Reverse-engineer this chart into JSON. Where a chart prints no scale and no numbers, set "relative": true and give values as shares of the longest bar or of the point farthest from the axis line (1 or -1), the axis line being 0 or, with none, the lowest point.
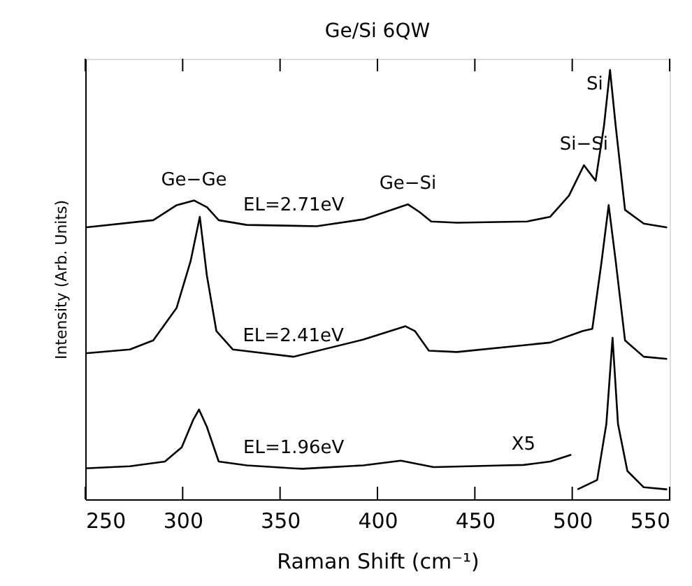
{
  "chart_data": {
    "type": "line",
    "title": "Ge/Si 6QW",
    "xlabel": "Raman Shift (cm⁻¹)",
    "ylabel": "Intensity (Arb. Units)",
    "relative": true,
    "xlim": [
      250,
      550
    ],
    "xticks": [
      250,
      300,
      350,
      400,
      450,
      500,
      550
    ],
    "grid": false,
    "marker": "none",
    "line_style": "solid",
    "series": [
      {
        "color": "#000000",
        "x": [
          250,
          284.9,
          296.9,
          305.8,
          312.5,
          318.5,
          332.9,
          357,
          368.8,
          392.8,
          415.6,
          421.6,
          427.6,
          440.8,
          476.8,
          488.7,
          498.3,
          506,
          512,
          516.3,
          519.4,
          522.3,
          527.1,
          536.7,
          548.7
        ],
        "values": [
          0.633,
          0.65,
          0.685,
          0.696,
          0.68,
          0.65,
          0.639,
          0.637,
          0.636,
          0.652,
          0.687,
          0.669,
          0.647,
          0.644,
          0.647,
          0.658,
          0.707,
          0.778,
          0.742,
          0.87,
          1.0,
          0.87,
          0.674,
          0.642,
          0.633
        ]
      },
      {
        "color": "#000000",
        "x": [
          250,
          272.9,
          284.9,
          296.9,
          304.1,
          308.8,
          312.4,
          317.3,
          325.7,
          356.8,
          392.8,
          414.4,
          419.2,
          426.4,
          440.8,
          488.7,
          505.5,
          510.3,
          515.1,
          518.7,
          522.3,
          527.1,
          536.7,
          548.7
        ],
        "values": [
          0.34,
          0.349,
          0.37,
          0.446,
          0.555,
          0.658,
          0.522,
          0.392,
          0.349,
          0.332,
          0.372,
          0.403,
          0.392,
          0.346,
          0.343,
          0.365,
          0.392,
          0.397,
          0.555,
          0.685,
          0.555,
          0.37,
          0.332,
          0.327
        ]
      },
      {
        "color": "#000000",
        "x": [
          250,
          272.9,
          290.9,
          299.5,
          305.5,
          308.4,
          312.4,
          318.5,
          332.9,
          357,
          361.6,
          392.8,
          412,
          428.8,
          464.7,
          475,
          488.7,
          499.5,
          501,
          502.7,
          512.8,
          517.5,
          520.7,
          523.5,
          528.3,
          536.7,
          548.7
        ],
        "values": [
          0.072,
          0.077,
          0.088,
          0.121,
          0.186,
          0.209,
          0.169,
          0.088,
          0.079,
          0.072,
          0.071,
          0.079,
          0.09,
          0.075,
          0.079,
          0.08,
          0.088,
          0.104,
          null,
          0.023,
          0.045,
          0.175,
          0.376,
          0.175,
          0.066,
          0.028,
          0.023
        ]
      }
    ],
    "annotations": [
      {
        "text": "Ge−Ge",
        "x": 305.8,
        "y": 0.696
      },
      {
        "text": "Ge−Si",
        "x": 415.6,
        "y": 0.687
      },
      {
        "text": "Si−Si",
        "x": 506,
        "y": 0.778
      },
      {
        "text": "Si",
        "x": 519.4,
        "y": 1.0
      },
      {
        "text": "EL=2.71eV",
        "x": 357,
        "y": 0.637
      },
      {
        "text": "EL=2.41eV",
        "x": 356.8,
        "y": 0.332
      },
      {
        "text": "EL=1.96eV",
        "x": 357,
        "y": 0.072
      },
      {
        "text": "X5",
        "x": 475,
        "y": 0.08
      }
    ]
  }
}
